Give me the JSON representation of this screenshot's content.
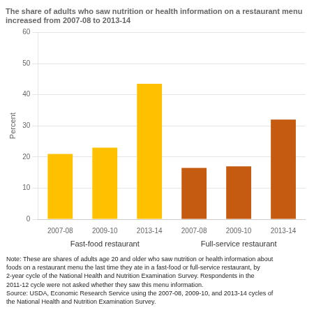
{
  "chart_data": {
    "type": "bar",
    "title": "The share of adults who saw nutrition or health information on a restaurant menu\nincreased from 2007-08 to 2013-14",
    "ylabel": "Percent",
    "categories": [
      "2007-08",
      "2009-10",
      "2013-14",
      "2007-08",
      "2009-10",
      "2013-14"
    ],
    "series": [
      {
        "name": "Fast-food restaurant",
        "color": "#FFC000",
        "values": [
          21,
          23,
          43.5,
          null,
          null,
          null
        ]
      },
      {
        "name": "Full-service restaurant",
        "color": "#C55A11",
        "values": [
          null,
          null,
          null,
          16.5,
          17,
          32
        ]
      }
    ],
    "ylim": [
      0,
      60
    ],
    "yticks": [
      0,
      10,
      20,
      30,
      40,
      50,
      60
    ],
    "grid": true,
    "notes": [
      "Note: These are shares of adults age 20 and older who saw nutrition or health information about",
      "foods on a restaurant menu the last time they ate in a fast-food or full-service restaurant, by",
      "2-year cycle of the National Health and Nutrition Examination Survey. Respondents in the",
      "2011-12 cycle were not asked whether they saw this menu information.",
      "Source: USDA, Economic Research Service using the 2007-08, 2009-10, and 2013-14 cycles of",
      "the National Health and Nutrition Examination Survey."
    ]
  }
}
